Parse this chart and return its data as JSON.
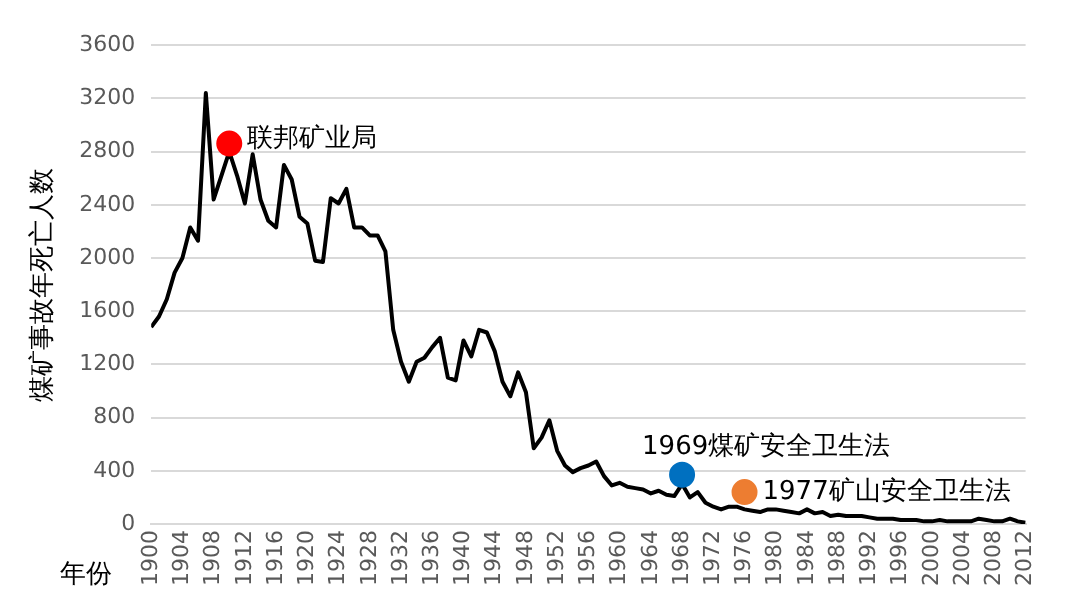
{
  "chart_data": {
    "type": "line",
    "ylabel": "煤矿事故年死亡人数",
    "xlabel": "年份",
    "xlim": [
      1900,
      2012
    ],
    "xticks": [
      1900,
      1904,
      1908,
      1912,
      1916,
      1920,
      1924,
      1928,
      1932,
      1936,
      1940,
      1944,
      1948,
      1952,
      1956,
      1960,
      1964,
      1968,
      1972,
      1976,
      1980,
      1984,
      1988,
      1992,
      1996,
      2000,
      2004,
      2008,
      2012
    ],
    "ylim": [
      0,
      3600
    ],
    "yticks": [
      0,
      400,
      800,
      1200,
      1600,
      2000,
      2400,
      2800,
      3200,
      3600
    ],
    "grid": "y",
    "legend": false,
    "series": [
      {
        "color": "#000000",
        "x": [
          1900,
          1901,
          1902,
          1903,
          1904,
          1905,
          1906,
          1907,
          1908,
          1909,
          1910,
          1911,
          1912,
          1913,
          1914,
          1915,
          1916,
          1917,
          1918,
          1919,
          1920,
          1921,
          1922,
          1923,
          1924,
          1925,
          1926,
          1927,
          1928,
          1929,
          1930,
          1931,
          1932,
          1933,
          1934,
          1935,
          1936,
          1937,
          1938,
          1939,
          1940,
          1941,
          1942,
          1943,
          1944,
          1945,
          1946,
          1947,
          1948,
          1949,
          1950,
          1951,
          1952,
          1953,
          1954,
          1955,
          1956,
          1957,
          1958,
          1959,
          1960,
          1961,
          1962,
          1963,
          1964,
          1965,
          1966,
          1967,
          1968,
          1969,
          1970,
          1971,
          1972,
          1973,
          1974,
          1975,
          1976,
          1977,
          1978,
          1979,
          1980,
          1981,
          1982,
          1983,
          1984,
          1985,
          1986,
          1987,
          1988,
          1989,
          1990,
          1991,
          1992,
          1993,
          1994,
          1995,
          1996,
          1997,
          1998,
          1999,
          2000,
          2001,
          2002,
          2003,
          2004,
          2005,
          2006,
          2007,
          2008,
          2009,
          2010,
          2011,
          2012
        ],
        "values": [
          1480,
          1560,
          1690,
          1890,
          2000,
          2230,
          2130,
          3240,
          2440,
          2620,
          2800,
          2620,
          2410,
          2780,
          2440,
          2280,
          2230,
          2700,
          2590,
          2310,
          2260,
          1980,
          1970,
          2450,
          2410,
          2520,
          2230,
          2230,
          2170,
          2170,
          2050,
          1460,
          1220,
          1070,
          1220,
          1250,
          1330,
          1400,
          1100,
          1080,
          1380,
          1260,
          1460,
          1440,
          1300,
          1070,
          960,
          1140,
          990,
          570,
          650,
          780,
          550,
          440,
          390,
          420,
          440,
          470,
          360,
          290,
          310,
          280,
          270,
          260,
          230,
          250,
          220,
          210,
          300,
          200,
          240,
          160,
          130,
          110,
          130,
          130,
          110,
          100,
          90,
          110,
          110,
          100,
          90,
          80,
          110,
          80,
          90,
          60,
          70,
          60,
          60,
          60,
          50,
          40,
          40,
          40,
          30,
          30,
          30,
          20,
          20,
          30,
          20,
          20,
          20,
          20,
          40,
          30,
          20,
          20,
          40,
          20,
          10
        ]
      },
      {
        "type": "scatter",
        "color": "#ff0000",
        "x": [
          1910
        ],
        "values": [
          2860
        ]
      },
      {
        "type": "scatter",
        "color": "#0070c0",
        "x": [
          1968
        ],
        "values": [
          370
        ]
      },
      {
        "type": "scatter",
        "color": "#ed7d31",
        "x": [
          1976
        ],
        "values": [
          240
        ]
      }
    ],
    "annotations": [
      {
        "text": "联邦矿业局",
        "x": 1910,
        "y": 2860
      },
      {
        "text": "1969煤矿安全卫生法",
        "x": 1968,
        "y": 370
      },
      {
        "text": "1977矿山安全卫生法",
        "x": 1976,
        "y": 240
      }
    ]
  }
}
